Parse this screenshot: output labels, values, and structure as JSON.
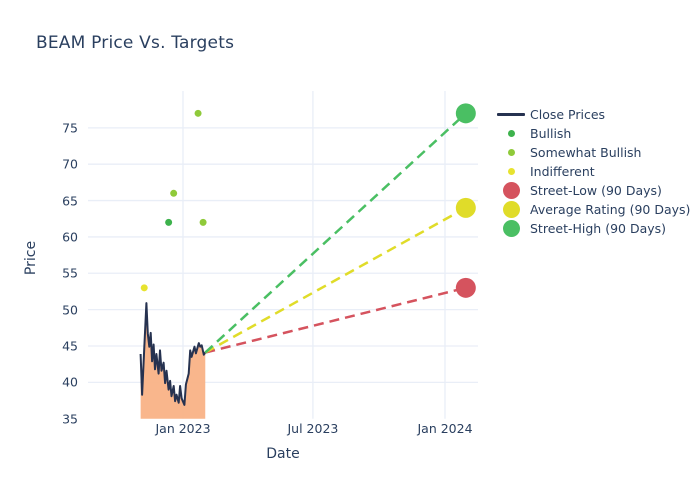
{
  "title": "BEAM Price Vs. Targets",
  "axes": {
    "x_title": "Date",
    "y_title": "Price",
    "x_ticks": [
      {
        "label": "Jan 2023",
        "date": "2023-01-01"
      },
      {
        "label": "Jul 2023",
        "date": "2023-07-01"
      },
      {
        "label": "Jan 2024",
        "date": "2024-01-01"
      }
    ],
    "y_ticks": [
      35,
      40,
      45,
      50,
      55,
      60,
      65,
      70,
      75
    ]
  },
  "colors": {
    "text": "#2a3f5f",
    "grid": "#e9eef7",
    "background": "#ffffff",
    "close_line": "#263250",
    "close_fill": "#f9b286",
    "bullish": "#3db24c",
    "somewhat_bullish": "#8fca3a",
    "indifferent": "#e7e32f",
    "street_low": "#d5535e",
    "average_rating": "#e0dc29",
    "street_high": "#4abf63"
  },
  "legend": {
    "items": [
      {
        "label": "Close Prices",
        "swatch": "line",
        "color": "#263250"
      },
      {
        "label": "Bullish",
        "swatch": "dot-small",
        "color": "#3db24c"
      },
      {
        "label": "Somewhat Bullish",
        "swatch": "dot-small",
        "color": "#8fca3a"
      },
      {
        "label": "Indifferent",
        "swatch": "dot-small",
        "color": "#e7e32f"
      },
      {
        "label": "Street-Low (90 Days)",
        "swatch": "dot-large",
        "color": "#d5535e"
      },
      {
        "label": "Average Rating (90 Days)",
        "swatch": "dot-large",
        "color": "#e0dc29"
      },
      {
        "label": "Street-High (90 Days)",
        "swatch": "dot-large",
        "color": "#4abf63"
      }
    ]
  },
  "chart_data": {
    "type": "line",
    "title": "BEAM Price Vs. Targets",
    "xlabel": "Date",
    "ylabel": "Price",
    "ylim": [
      35,
      80
    ],
    "xlim": [
      "2022-08-22",
      "2024-02-16"
    ],
    "grid": true,
    "legend_position": "right",
    "series": [
      {
        "name": "Close Prices",
        "type": "line",
        "color": "#263250",
        "fill": "tozero",
        "fill_color": "#f9b286",
        "x": [
          "2022-11-03",
          "2022-11-05",
          "2022-11-08",
          "2022-11-11",
          "2022-11-13",
          "2022-11-15",
          "2022-11-17",
          "2022-11-19",
          "2022-11-21",
          "2022-11-23",
          "2022-11-25",
          "2022-11-28",
          "2022-11-30",
          "2022-12-02",
          "2022-12-05",
          "2022-12-07",
          "2022-12-09",
          "2022-12-12",
          "2022-12-14",
          "2022-12-16",
          "2022-12-19",
          "2022-12-21",
          "2022-12-23",
          "2022-12-26",
          "2022-12-28",
          "2022-12-30",
          "2023-01-03",
          "2023-01-05",
          "2023-01-09",
          "2023-01-11",
          "2023-01-13",
          "2023-01-17",
          "2023-01-19",
          "2023-01-23",
          "2023-01-25",
          "2023-01-27",
          "2023-01-30",
          "2023-02-01"
        ],
        "y": [
          43.9,
          38.3,
          44.5,
          50.9,
          46.7,
          44.9,
          46.8,
          42.9,
          45.2,
          41.8,
          43.9,
          41.2,
          44.4,
          41.6,
          42.7,
          39.9,
          41.6,
          39.0,
          40.2,
          38.1,
          39.5,
          37.4,
          38.3,
          37.2,
          39.5,
          37.8,
          36.9,
          39.7,
          41.2,
          44.4,
          43.5,
          44.9,
          44.0,
          45.4,
          44.9,
          45.1,
          43.8,
          44.1
        ]
      },
      {
        "name": "Bullish",
        "type": "scatter",
        "color": "#3db24c",
        "points": [
          {
            "x": "2022-12-12",
            "y": 62
          }
        ]
      },
      {
        "name": "Somewhat Bullish",
        "type": "scatter",
        "color": "#8fca3a",
        "points": [
          {
            "x": "2022-12-19",
            "y": 66
          },
          {
            "x": "2023-01-22",
            "y": 77
          },
          {
            "x": "2023-01-29",
            "y": 62
          }
        ]
      },
      {
        "name": "Indifferent",
        "type": "scatter",
        "color": "#e7e32f",
        "points": [
          {
            "x": "2022-11-08",
            "y": 53
          }
        ]
      },
      {
        "name": "Street-Low (90 Days)",
        "type": "target",
        "color": "#d5535e",
        "x": "2024-01-30",
        "y": 53
      },
      {
        "name": "Average Rating (90 Days)",
        "type": "target",
        "color": "#e0dc29",
        "x": "2024-01-30",
        "y": 64
      },
      {
        "name": "Street-High (90 Days)",
        "type": "target",
        "color": "#4abf63",
        "x": "2024-01-30",
        "y": 77
      }
    ]
  }
}
